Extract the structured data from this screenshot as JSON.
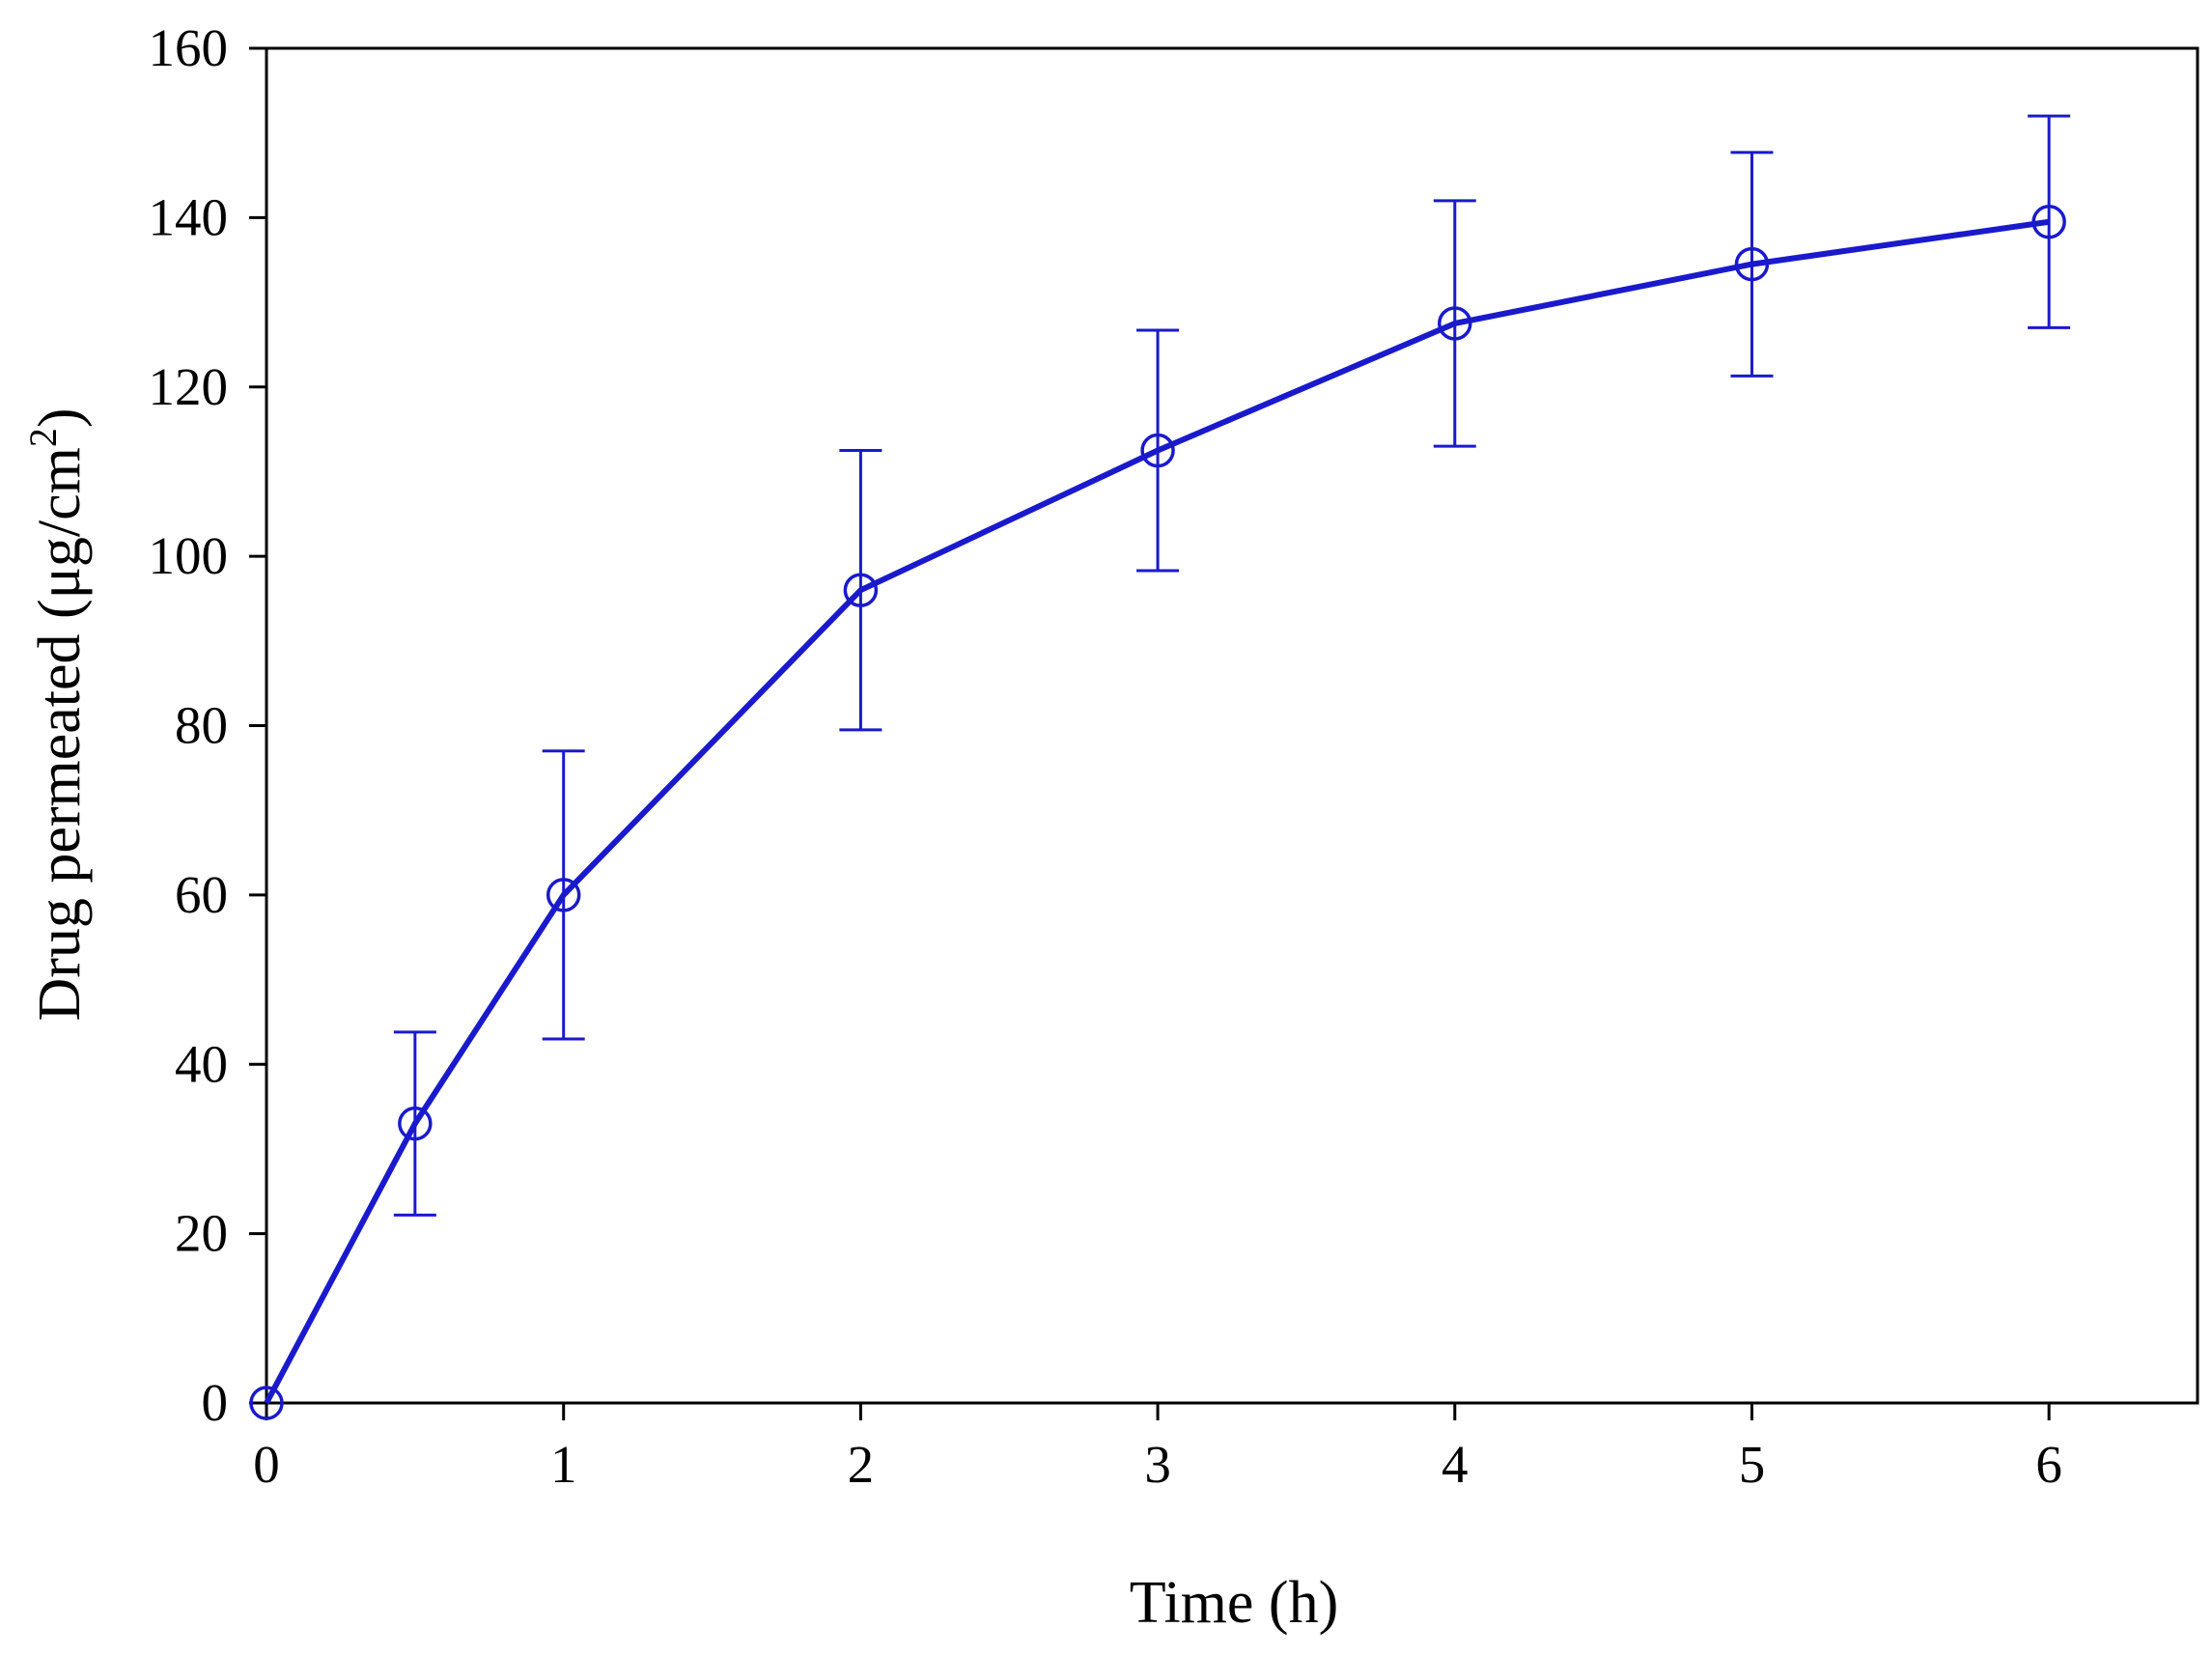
{
  "chart_data": {
    "type": "line",
    "xlabel": "Time (h)",
    "ylabel_main": "Drug permeated (μg/cm",
    "ylabel_sup": "2",
    "ylabel_close": ")",
    "xlim": [
      0,
      6.5
    ],
    "ylim": [
      0,
      160
    ],
    "xticks": [
      0,
      1,
      2,
      3,
      4,
      5,
      6
    ],
    "yticks": [
      0,
      20,
      40,
      60,
      80,
      100,
      120,
      140,
      160
    ],
    "grid": false,
    "legend": "none",
    "series": [
      {
        "x": [
          0,
          0.5,
          1,
          2,
          3,
          4,
          5,
          6
        ],
        "y": [
          0,
          33,
          60,
          96,
          112.5,
          127.5,
          134.5,
          139.5
        ],
        "error": [
          0,
          10.8,
          17,
          16.5,
          14.2,
          14.5,
          13.2,
          12.5
        ],
        "color": "#1a1acc",
        "marker": "open-circle"
      }
    ]
  }
}
